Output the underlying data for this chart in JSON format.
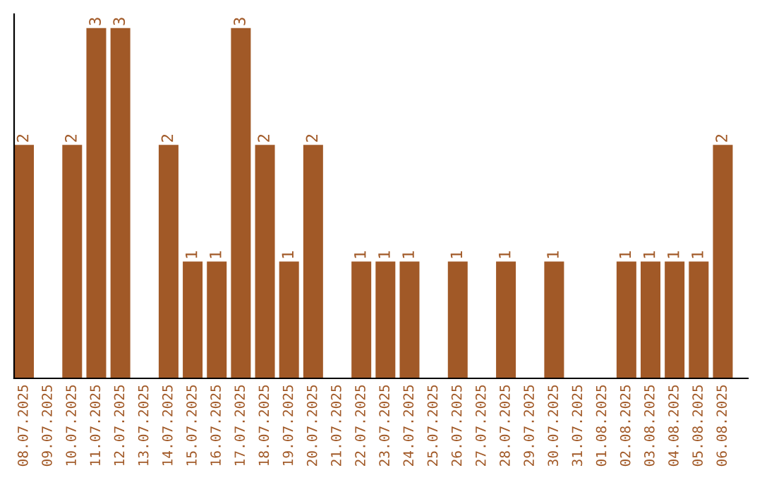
{
  "chart_data": {
    "type": "bar",
    "categories": [
      "08.07.2025",
      "09.07.2025",
      "10.07.2025",
      "11.07.2025",
      "12.07.2025",
      "13.07.2025",
      "14.07.2025",
      "15.07.2025",
      "16.07.2025",
      "17.07.2025",
      "18.07.2025",
      "19.07.2025",
      "20.07.2025",
      "21.07.2025",
      "22.07.2025",
      "23.07.2025",
      "24.07.2025",
      "25.07.2025",
      "26.07.2025",
      "27.07.2025",
      "28.07.2025",
      "29.07.2025",
      "30.07.2025",
      "31.07.2025",
      "01.08.2025",
      "02.08.2025",
      "03.08.2025",
      "04.08.2025",
      "05.08.2025",
      "06.08.2025"
    ],
    "values": [
      2,
      0,
      2,
      3,
      3,
      0,
      2,
      1,
      1,
      3,
      2,
      1,
      2,
      0,
      1,
      1,
      1,
      0,
      1,
      0,
      1,
      0,
      1,
      0,
      0,
      1,
      1,
      1,
      1,
      2
    ],
    "value_labels": [
      "2",
      null,
      "2",
      "3",
      "3",
      null,
      "2",
      "1",
      "1",
      "3",
      "2",
      "1",
      "2",
      null,
      "1",
      "1",
      "1",
      null,
      "1",
      null,
      "1",
      null,
      "1",
      null,
      null,
      "1",
      "1",
      "1",
      "1",
      "2"
    ],
    "color": "#a15927",
    "ylim": [
      0,
      3.12
    ],
    "tick_labels": "x",
    "grid": false,
    "legend": false
  }
}
